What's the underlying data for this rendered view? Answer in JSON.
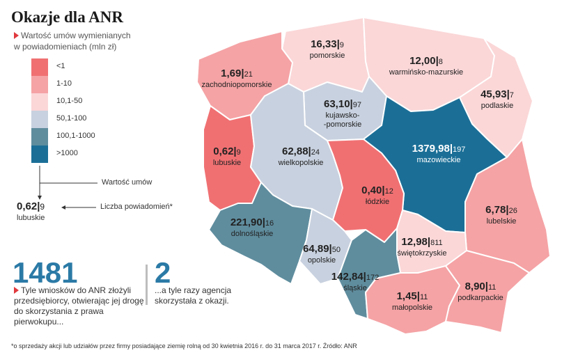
{
  "title": "Okazje dla ANR",
  "subtitle_line1": "Wartość umów wymienianych",
  "subtitle_line2": "w powiadomieniach (mln zł)",
  "colors": {
    "lt1": "#f07072",
    "1to10": "#f5a3a5",
    "10to50": "#fbd7d8",
    "50to100": "#c8d1df",
    "100to1000": "#5f8d9e",
    "gt1000": "#1b6f97",
    "accent": "#e0393e",
    "big_number": "#2b7aa6"
  },
  "legend": [
    {
      "label": "<1",
      "color": "#f07072"
    },
    {
      "label": "1-10",
      "color": "#f5a3a5"
    },
    {
      "label": "10,1-50",
      "color": "#fbd7d8"
    },
    {
      "label": "50,1-100",
      "color": "#c8d1df"
    },
    {
      "label": "100,1-1000",
      "color": "#5f8d9e"
    },
    {
      "label": ">1000",
      "color": "#1b6f97"
    }
  ],
  "example": {
    "value_caption": "Wartość umów",
    "count_caption": "Liczba powiadomień*",
    "value": "0,62|",
    "count": "9",
    "name": "lubuskie"
  },
  "regions": [
    {
      "id": "pomorskie",
      "name": "pomorskie",
      "value": "16,33|",
      "count": "9",
      "color": "#fbd7d8"
    },
    {
      "id": "warminsko",
      "name": "warmińsko-mazurskie",
      "value": "12,00|",
      "count": "8",
      "color": "#fbd7d8"
    },
    {
      "id": "zachodnio",
      "name": "zachodniopomorskie",
      "value": "1,69|",
      "count": "21",
      "color": "#f5a3a5"
    },
    {
      "id": "kujawsko",
      "name": "kujawsko-",
      "name2": "-pomorskie",
      "value": "63,10|",
      "count": "97",
      "color": "#c8d1df"
    },
    {
      "id": "podlaskie",
      "name": "podlaskie",
      "value": "45,93|",
      "count": "7",
      "color": "#fbd7d8"
    },
    {
      "id": "lubuskie",
      "name": "lubuskie",
      "value": "0,62|",
      "count": "9",
      "color": "#f07072"
    },
    {
      "id": "wielkopolskie",
      "name": "wielkopolskie",
      "value": "62,88|",
      "count": "24",
      "color": "#c8d1df"
    },
    {
      "id": "mazowieckie",
      "name": "mazowieckie",
      "value": "1379,98|",
      "count": "197",
      "color": "#1b6f97"
    },
    {
      "id": "lodzkie",
      "name": "łódzkie",
      "value": "0,40|",
      "count": "12",
      "color": "#f07072"
    },
    {
      "id": "lubelskie",
      "name": "lubelskie",
      "value": "6,78|",
      "count": "26",
      "color": "#f5a3a5"
    },
    {
      "id": "dolnoslaskie",
      "name": "dolnośląskie",
      "value": "221,90|",
      "count": "16",
      "color": "#5f8d9e"
    },
    {
      "id": "opolskie",
      "name": "opolskie",
      "value": "64,89|",
      "count": "50",
      "color": "#c8d1df"
    },
    {
      "id": "swietokrzyskie",
      "name": "świętokrzyskie",
      "value": "12,98|",
      "count": "811",
      "color": "#fbd7d8"
    },
    {
      "id": "slaskie",
      "name": "śląskie",
      "value": "142,84|",
      "count": "172",
      "color": "#5f8d9e"
    },
    {
      "id": "malopolskie",
      "name": "małopolskie",
      "value": "1,45|",
      "count": "11",
      "color": "#f5a3a5"
    },
    {
      "id": "podkarpackie",
      "name": "podkarpackie",
      "value": "8,90|",
      "count": "11",
      "color": "#f5a3a5"
    }
  ],
  "stat1": {
    "number": "1481",
    "line1": "Tyle wniosków do ANR złożyli",
    "line2": "przedsiębiorcy, otwierając jej drogę",
    "line3": "do skorzystania z prawa",
    "line4": "pierwokupu..."
  },
  "stat2": {
    "number": "2",
    "line1": "...a tyle razy agencja",
    "line2": "skorzystała z okazji."
  },
  "footnote": "*o sprzedaży akcji lub udziałów przez firmy posiadające ziemię rolną od 30 kwietnia 2016 r. do 31 marca 2017 r. Źródło: ANR"
}
